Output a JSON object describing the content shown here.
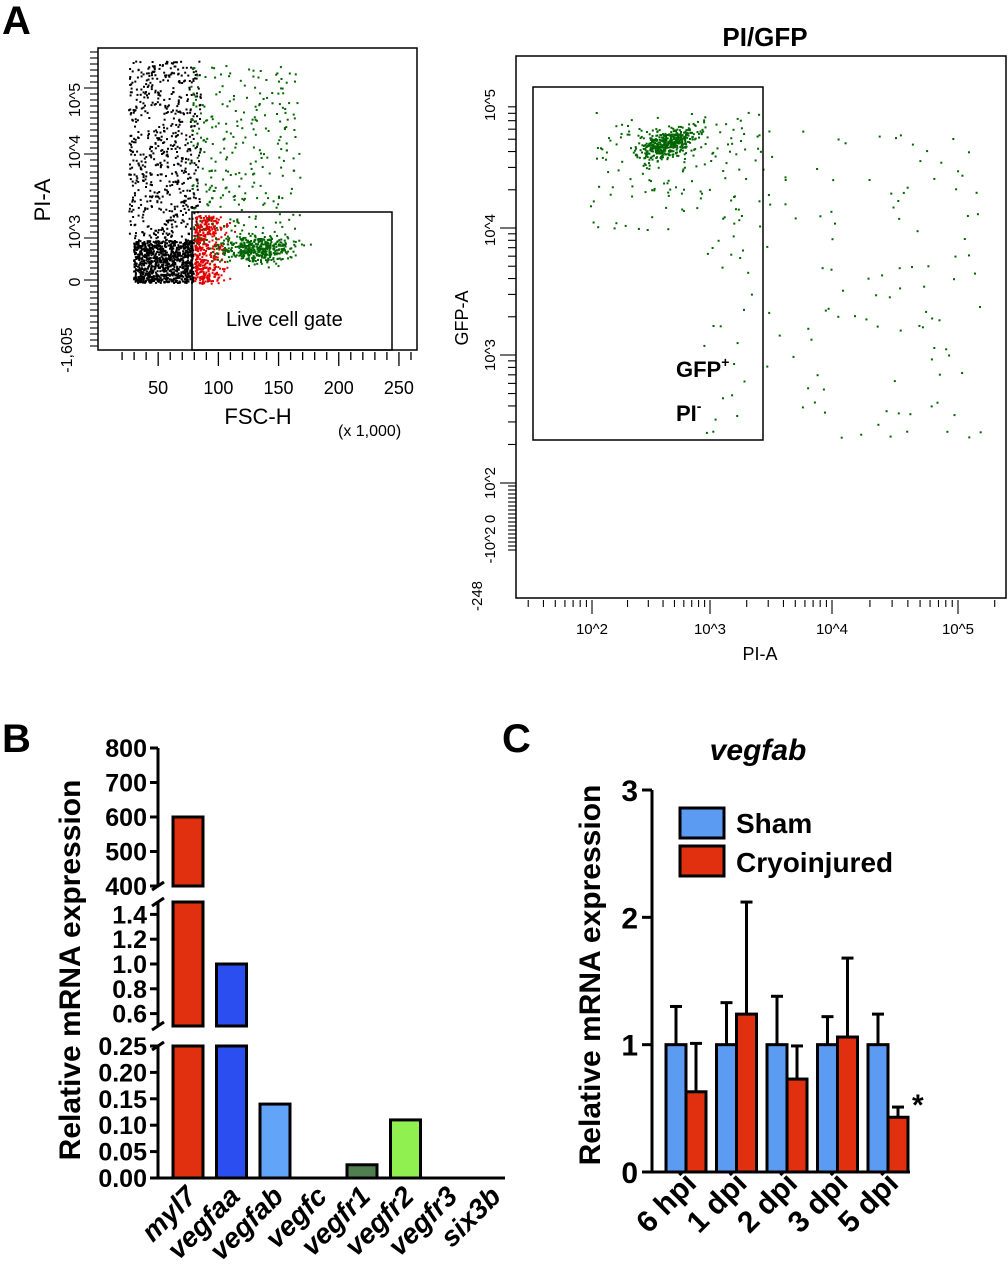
{
  "panel_letters": {
    "a": "A",
    "b": "B",
    "c": "C"
  },
  "chart_data": [
    {
      "type": "scatter",
      "panel": "A-left",
      "xlabel": "FSC-H",
      "x_unit_note": "(x 1,000)",
      "ylabel": "PI-A",
      "xlim": [
        0,
        265
      ],
      "x_ticks": [
        "50",
        "100",
        "150",
        "200",
        "250"
      ],
      "y_ticks": [
        "10^5",
        "10^4",
        "10^3",
        "0",
        "-1,605"
      ],
      "gate_label": "Live cell gate",
      "series": [
        {
          "color": "#000000",
          "n": 1600
        },
        {
          "color": "#e00000",
          "n": 420
        },
        {
          "color": "#006400",
          "n": 700
        }
      ]
    },
    {
      "type": "scatter",
      "panel": "A-right",
      "title": "PI/GFP",
      "xlabel": "PI-A",
      "ylabel": "GFP-A",
      "x_scale": "log",
      "x_ticks": [
        "10^2",
        "10^3",
        "10^4",
        "10^5"
      ],
      "y_ticks": [
        "10^5",
        "10^4",
        "10^3",
        "10^2",
        "0",
        "-10^2",
        "-248"
      ],
      "gate_label_line1": "GFP",
      "gate_label_line1_sup": "+",
      "gate_label_line2": "PI",
      "gate_label_line2_sup": "-",
      "series": [
        {
          "color": "#006400",
          "n": 700
        }
      ]
    },
    {
      "type": "bar",
      "panel": "B",
      "ylabel": "Relative mRNA expression",
      "categories": [
        "myl7",
        "vegfaa",
        "vegfab",
        "vegfc",
        "vegfr1",
        "vegfr2",
        "vegfr3",
        "six3b"
      ],
      "values": [
        600,
        1.0,
        0.14,
        0.0,
        0.025,
        0.11,
        0.0,
        0.0
      ],
      "bar_colors": [
        "#e03010",
        "#2b4ef0",
        "#62a4f8",
        "#000000",
        "#4f7f4f",
        "#90f050",
        "#000000",
        "#000000"
      ],
      "broken_axis_segments": [
        {
          "ylim": [
            400,
            800
          ],
          "ticks": [
            "800",
            "700",
            "600",
            "500",
            "400"
          ]
        },
        {
          "ylim": [
            0.5,
            1.5
          ],
          "ticks": [
            "1.4",
            "1.2",
            "1.0",
            "0.8",
            "0.6"
          ]
        },
        {
          "ylim": [
            0,
            0.25
          ],
          "ticks": [
            "0.25",
            "0.20",
            "0.15",
            "0.10",
            "0.05",
            "0.00"
          ]
        }
      ]
    },
    {
      "type": "bar",
      "panel": "C",
      "title": "vegfab",
      "ylabel": "Relative mRNA expression",
      "ylim": [
        0,
        3
      ],
      "y_ticks": [
        "0",
        "1",
        "2",
        "3"
      ],
      "categories": [
        "6 hpi",
        "1 dpi",
        "2 dpi",
        "3 dpi",
        "5 dpi"
      ],
      "series": [
        {
          "name": "Sham",
          "color": "#5b9bf2",
          "values": [
            1.0,
            1.0,
            1.0,
            1.0,
            1.0
          ],
          "error": [
            0.3,
            0.33,
            0.38,
            0.22,
            0.24
          ]
        },
        {
          "name": "Cryoinjured",
          "color": "#e03010",
          "values": [
            0.63,
            1.24,
            0.73,
            1.06,
            0.43
          ],
          "error": [
            0.38,
            0.88,
            0.26,
            0.62,
            0.08
          ]
        }
      ],
      "annotations": [
        {
          "category": "5 dpi",
          "text": "*"
        }
      ]
    }
  ]
}
